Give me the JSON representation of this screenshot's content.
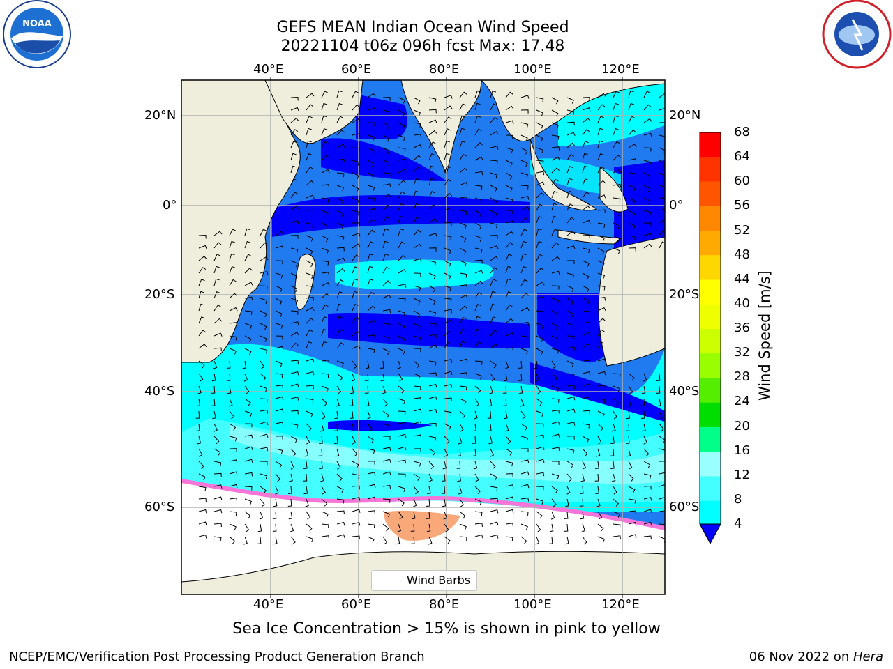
{
  "title": {
    "line1": "GEFS MEAN Indian Ocean Wind Speed",
    "line2": "20221104 t06z 096h fcst   Max: 17.48"
  },
  "map": {
    "lon_labels": [
      "40°E",
      "60°E",
      "80°E",
      "100°E",
      "120°E"
    ],
    "lat_labels": [
      "20°N",
      "0°",
      "20°S",
      "40°S",
      "60°S"
    ],
    "legend_label": "Wind Barbs",
    "colors": {
      "land": "#efeedd",
      "ice_free_white": "#ffffff",
      "sea_ice_pink": "#f575d8",
      "sea_ice_orange": "#f9a87a"
    }
  },
  "colorbar": {
    "label": "Wind Speed [m/s]",
    "ticks": [
      "68",
      "64",
      "60",
      "56",
      "52",
      "48",
      "44",
      "40",
      "36",
      "32",
      "28",
      "24",
      "20",
      "16",
      "12",
      "8",
      "4"
    ],
    "colors_top_to_bottom": [
      "#ff0000",
      "#ff3300",
      "#ff5500",
      "#ff8800",
      "#ffaa00",
      "#ffd700",
      "#ffff00",
      "#eeff00",
      "#ccff00",
      "#99ff00",
      "#55ee00",
      "#00dd00",
      "#00ff88",
      "#99ffff",
      "#44ffff",
      "#00ffff",
      "#0088ff"
    ],
    "extend_color": "#0000ff"
  },
  "caption": "Sea Ice Concentration > 15% is shown in pink to yellow",
  "footer": {
    "left": "NCEP/EMC/Verification Post Processing Product Generation Branch",
    "right_date": "06 Nov 2022 on ",
    "right_host": "Hera"
  },
  "logos": {
    "left_icon": "noaa-logo-icon",
    "right_icon": "nws-logo-icon",
    "noaa_text": "NOAA"
  }
}
